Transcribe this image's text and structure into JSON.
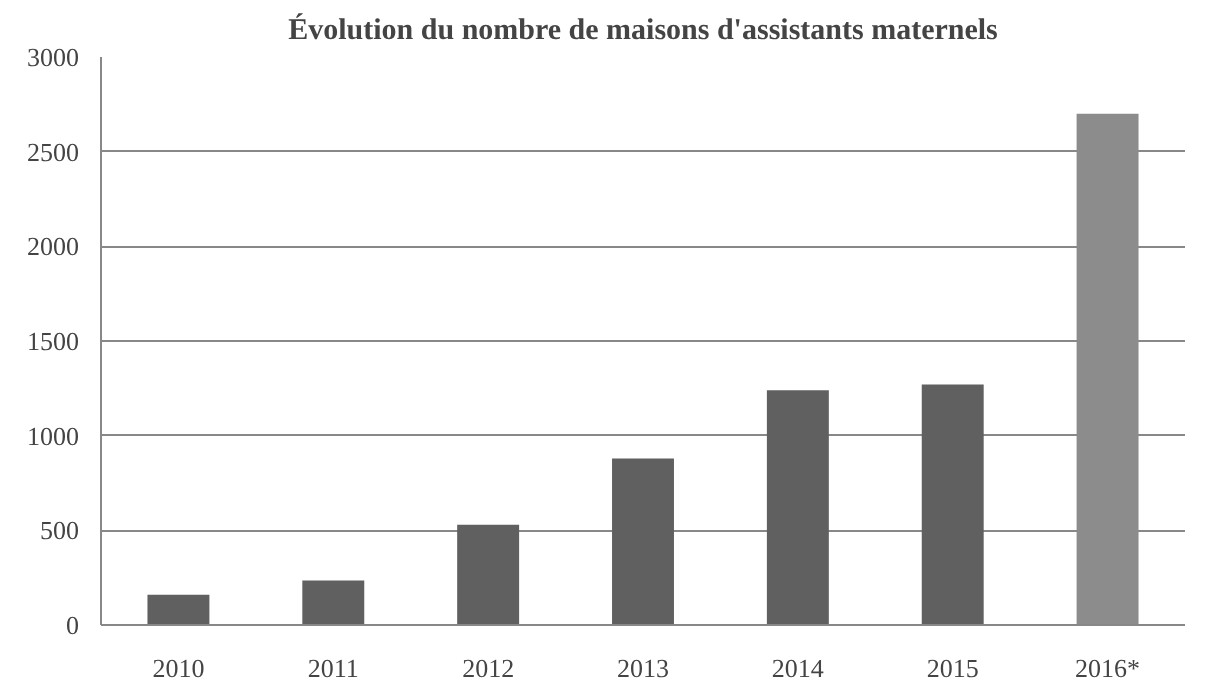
{
  "chart_data": {
    "type": "bar",
    "title": "Évolution du nombre de maisons d'assistants maternels",
    "categories": [
      "2010",
      "2011",
      "2012",
      "2013",
      "2014",
      "2015",
      "2016*"
    ],
    "values": [
      160,
      235,
      530,
      880,
      1240,
      1270,
      2700
    ],
    "colors": [
      "#606060",
      "#606060",
      "#606060",
      "#606060",
      "#606060",
      "#606060",
      "#8c8c8c"
    ],
    "ylim": [
      0,
      3000
    ],
    "yticks": [
      0,
      500,
      1000,
      1500,
      2000,
      2500,
      3000
    ],
    "grid": "y"
  }
}
